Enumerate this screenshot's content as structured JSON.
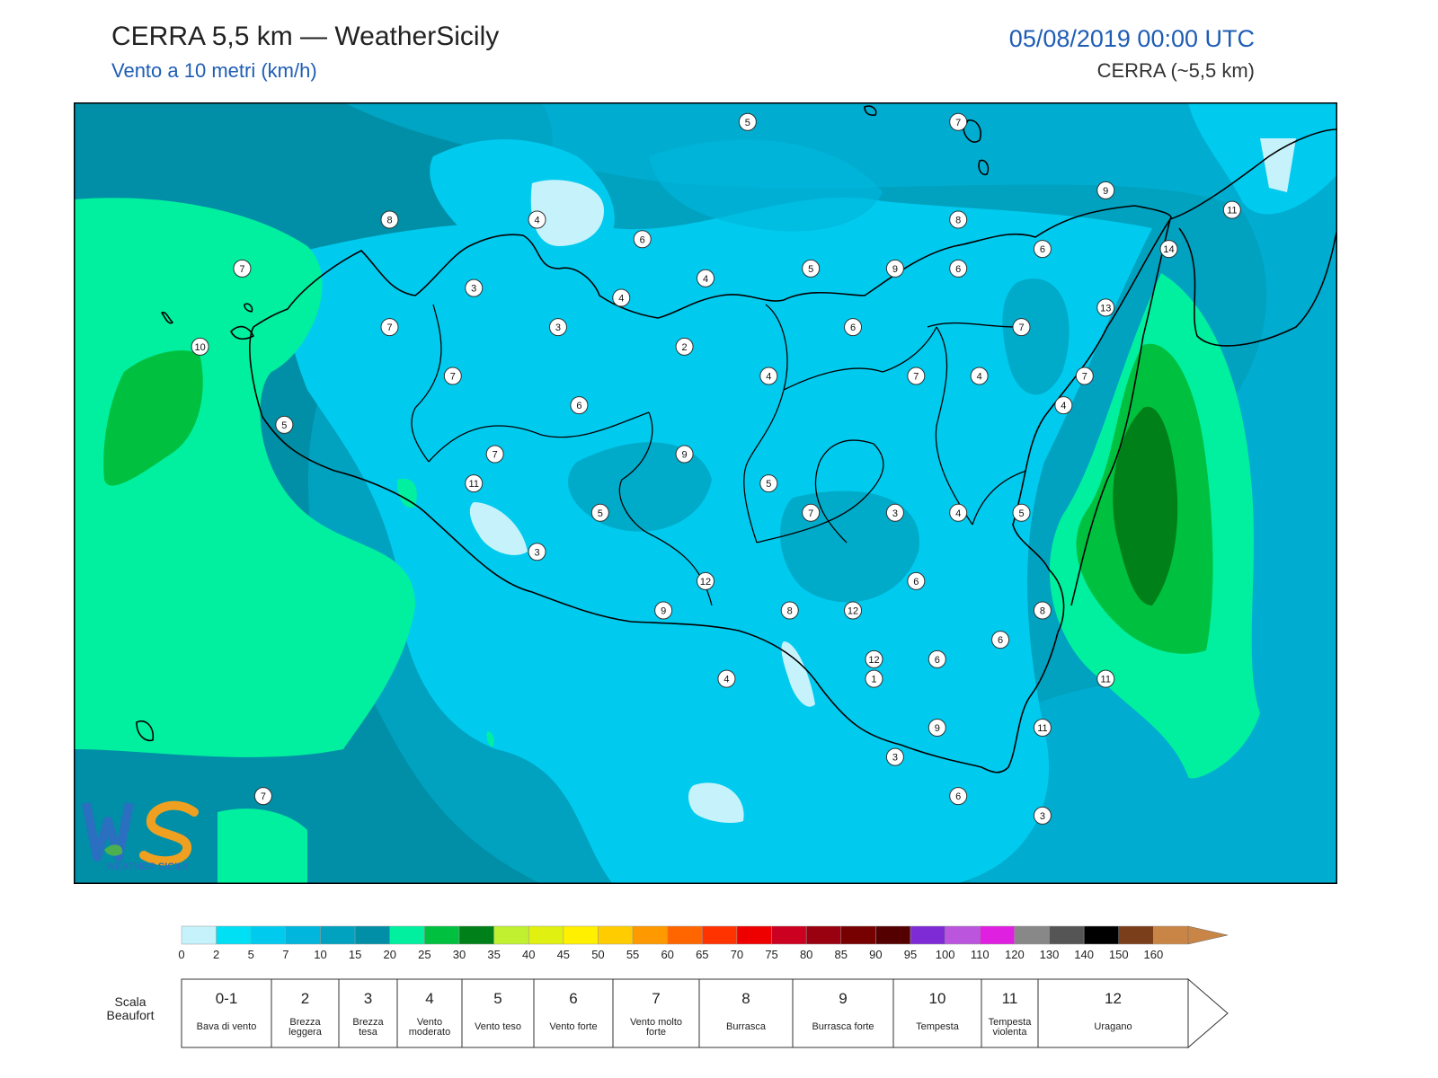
{
  "header": {
    "title": "CERRA 5,5 km — WeatherSicily",
    "subtitle": "Vento a 10 metri (km/h)",
    "datetime": "05/08/2019 00:00 UTC",
    "model_label": "CERRA (~5,5 km)"
  },
  "logo": {
    "letters": "WS",
    "caption": "WEATHER SICILY"
  },
  "wind_labels": [
    {
      "v": "5",
      "lon": 14.2,
      "lat": 39.2
    },
    {
      "v": "7",
      "lon": 15.2,
      "lat": 39.2
    },
    {
      "v": "9",
      "lon": 15.9,
      "lat": 38.85
    },
    {
      "v": "11",
      "lon": 16.5,
      "lat": 38.75
    },
    {
      "v": "8",
      "lon": 15.2,
      "lat": 38.7
    },
    {
      "v": "14",
      "lon": 16.2,
      "lat": 38.55
    },
    {
      "v": "6",
      "lon": 15.6,
      "lat": 38.55
    },
    {
      "v": "8",
      "lon": 12.5,
      "lat": 38.7
    },
    {
      "v": "4",
      "lon": 13.2,
      "lat": 38.7
    },
    {
      "v": "6",
      "lon": 13.7,
      "lat": 38.6
    },
    {
      "v": "5",
      "lon": 14.5,
      "lat": 38.45
    },
    {
      "v": "9",
      "lon": 14.9,
      "lat": 38.45
    },
    {
      "v": "6",
      "lon": 15.2,
      "lat": 38.45
    },
    {
      "v": "7",
      "lon": 11.8,
      "lat": 38.45
    },
    {
      "v": "3",
      "lon": 12.9,
      "lat": 38.35
    },
    {
      "v": "4",
      "lon": 13.6,
      "lat": 38.3
    },
    {
      "v": "4",
      "lon": 14.0,
      "lat": 38.4
    },
    {
      "v": "13",
      "lon": 15.9,
      "lat": 38.25
    },
    {
      "v": "7",
      "lon": 12.5,
      "lat": 38.15
    },
    {
      "v": "3",
      "lon": 13.3,
      "lat": 38.15
    },
    {
      "v": "6",
      "lon": 14.7,
      "lat": 38.15
    },
    {
      "v": "7",
      "lon": 15.5,
      "lat": 38.15
    },
    {
      "v": "10",
      "lon": 11.6,
      "lat": 38.05
    },
    {
      "v": "2",
      "lon": 13.9,
      "lat": 38.05
    },
    {
      "v": "7",
      "lon": 12.8,
      "lat": 37.9
    },
    {
      "v": "4",
      "lon": 14.3,
      "lat": 37.9
    },
    {
      "v": "7",
      "lon": 15.0,
      "lat": 37.9
    },
    {
      "v": "4",
      "lon": 15.3,
      "lat": 37.9
    },
    {
      "v": "7",
      "lon": 15.8,
      "lat": 37.9
    },
    {
      "v": "6",
      "lon": 13.4,
      "lat": 37.75
    },
    {
      "v": "4",
      "lon": 15.7,
      "lat": 37.75
    },
    {
      "v": "5",
      "lon": 12.0,
      "lat": 37.65
    },
    {
      "v": "7",
      "lon": 13.0,
      "lat": 37.5
    },
    {
      "v": "9",
      "lon": 13.9,
      "lat": 37.5
    },
    {
      "v": "11",
      "lon": 12.9,
      "lat": 37.35
    },
    {
      "v": "5",
      "lon": 14.3,
      "lat": 37.35
    },
    {
      "v": "5",
      "lon": 13.5,
      "lat": 37.2
    },
    {
      "v": "7",
      "lon": 14.5,
      "lat": 37.2
    },
    {
      "v": "3",
      "lon": 14.9,
      "lat": 37.2
    },
    {
      "v": "4",
      "lon": 15.2,
      "lat": 37.2
    },
    {
      "v": "5",
      "lon": 15.5,
      "lat": 37.2
    },
    {
      "v": "3",
      "lon": 13.2,
      "lat": 37.0
    },
    {
      "v": "12",
      "lon": 14.0,
      "lat": 36.85
    },
    {
      "v": "6",
      "lon": 15.0,
      "lat": 36.85
    },
    {
      "v": "9",
      "lon": 13.8,
      "lat": 36.7
    },
    {
      "v": "8",
      "lon": 14.4,
      "lat": 36.7
    },
    {
      "v": "12",
      "lon": 14.7,
      "lat": 36.7
    },
    {
      "v": "8",
      "lon": 15.6,
      "lat": 36.7
    },
    {
      "v": "6",
      "lon": 15.4,
      "lat": 36.55
    },
    {
      "v": "12",
      "lon": 14.8,
      "lat": 36.45
    },
    {
      "v": "6",
      "lon": 15.1,
      "lat": 36.45
    },
    {
      "v": "4",
      "lon": 14.1,
      "lat": 36.35
    },
    {
      "v": "1",
      "lon": 14.8,
      "lat": 36.35
    },
    {
      "v": "11",
      "lon": 15.9,
      "lat": 36.35
    },
    {
      "v": "9",
      "lon": 15.1,
      "lat": 36.1
    },
    {
      "v": "11",
      "lon": 15.6,
      "lat": 36.1
    },
    {
      "v": "3",
      "lon": 14.9,
      "lat": 35.95
    },
    {
      "v": "7",
      "lon": 11.9,
      "lat": 35.75
    },
    {
      "v": "6",
      "lon": 15.2,
      "lat": 35.75
    },
    {
      "v": "3",
      "lon": 15.6,
      "lat": 35.65
    }
  ],
  "legend": {
    "ticks": [
      "0",
      "2",
      "5",
      "7",
      "10",
      "15",
      "20",
      "25",
      "30",
      "35",
      "40",
      "45",
      "50",
      "55",
      "60",
      "65",
      "70",
      "75",
      "80",
      "85",
      "90",
      "95",
      "100",
      "110",
      "120",
      "130",
      "140",
      "150",
      "160"
    ],
    "colors": [
      "#c6f3fb",
      "#00e0f5",
      "#00cbef",
      "#00b6dd",
      "#00a2c0",
      "#008fa6",
      "#00f0a0",
      "#00c040",
      "#008018",
      "#c0f030",
      "#e0f010",
      "#fff000",
      "#ffcc00",
      "#ff9900",
      "#ff6600",
      "#ff3300",
      "#ee0000",
      "#cc0020",
      "#990010",
      "#770000",
      "#550000",
      "#7e2bd6",
      "#bb55dd",
      "#e020e0",
      "#888888",
      "#555555",
      "#000000",
      "#7a3e1a",
      "#c98545"
    ]
  },
  "beaufort": {
    "title": "Scala Beaufort",
    "cells": [
      {
        "num": "0-1",
        "desc": "Bava di vento"
      },
      {
        "num": "2",
        "desc": "Brezza leggera"
      },
      {
        "num": "3",
        "desc": "Brezza tesa"
      },
      {
        "num": "4",
        "desc": "Vento moderato"
      },
      {
        "num": "5",
        "desc": "Vento teso"
      },
      {
        "num": "6",
        "desc": "Vento forte"
      },
      {
        "num": "7",
        "desc": "Vento molto forte"
      },
      {
        "num": "8",
        "desc": "Burrasca"
      },
      {
        "num": "9",
        "desc": "Burrasca forte"
      },
      {
        "num": "10",
        "desc": "Tempesta"
      },
      {
        "num": "11",
        "desc": "Tempesta violenta"
      },
      {
        "num": "12",
        "desc": "Uragano"
      }
    ]
  }
}
